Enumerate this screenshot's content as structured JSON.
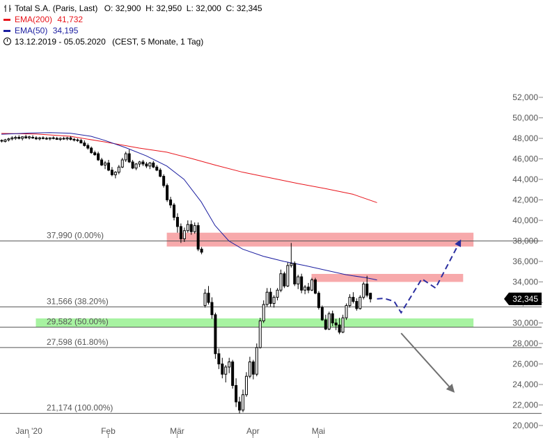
{
  "legend": {
    "symbol": "Total S.A. (Paris, Last)",
    "ohlc": "O: 32,900  H: 32,950  L: 32,000  C: 32,345",
    "ema200_label": "EMA(200)",
    "ema200_value": "41,732",
    "ema50_label": "EMA(50)",
    "ema50_value": "34,195",
    "range": "13.12.2019 - 05.05.2020",
    "period": "(CEST, 5 Monate, 1 Tag)"
  },
  "price_tag": "32,345",
  "colors": {
    "ema200": "#e8141b",
    "ema50": "#1b1ea0",
    "resistance_zone": "#f7a9ab",
    "support_zone": "#a7f3a1",
    "scenario_up": "#2a2ea0",
    "scenario_down": "#707070",
    "price_tag_bg": "#000000"
  },
  "chart_data": {
    "type": "candlestick",
    "y_axis": {
      "min": 20000,
      "max": 52000,
      "position": "right",
      "ticks": [
        20000,
        22000,
        24000,
        26000,
        28000,
        30000,
        32000,
        34000,
        36000,
        38000,
        40000,
        42000,
        44000,
        46000,
        48000,
        50000,
        52000
      ],
      "tick_labels": [
        "20,000",
        "22,000",
        "24,000",
        "26,000",
        "28,000",
        "30,000",
        "32,000",
        "34,000",
        "36,000",
        "38,000",
        "40,000",
        "42,000",
        "44,000",
        "46,000",
        "48,000",
        "50,000",
        "52,000"
      ]
    },
    "x_axis": {
      "months": [
        {
          "label": "Jan '20",
          "index": 8
        },
        {
          "label": "Feb",
          "index": 31
        },
        {
          "label": "Mär",
          "index": 51
        },
        {
          "label": "Apr",
          "index": 73
        },
        {
          "label": "Mai",
          "index": 92
        }
      ]
    },
    "fibonacci": [
      {
        "label": "37,990 (0.00%)",
        "value": 37990
      },
      {
        "label": "31,566 (38.20%)",
        "value": 31566
      },
      {
        "label": "29,582 (50.00%)",
        "value": 29582
      },
      {
        "label": "27,598 (61.80%)",
        "value": 27598
      },
      {
        "label": "21,174 (100.00%)",
        "value": 21174
      }
    ],
    "zones": [
      {
        "kind": "resistance",
        "from_index": 48,
        "to_index": 137,
        "low": 37450,
        "high": 38800
      },
      {
        "kind": "resistance",
        "from_index": 90,
        "to_index": 134,
        "low": 34000,
        "high": 34780
      },
      {
        "kind": "support",
        "from_index": 10,
        "to_index": 137,
        "low": 29580,
        "high": 30440
      }
    ],
    "candles": [
      [
        47800,
        47900,
        47600,
        47750
      ],
      [
        47700,
        47950,
        47600,
        47850
      ],
      [
        47850,
        48050,
        47700,
        47950
      ],
      [
        47950,
        48200,
        47800,
        48050
      ],
      [
        48000,
        48250,
        47850,
        48100
      ],
      [
        48100,
        48300,
        47900,
        48000
      ],
      [
        48000,
        48200,
        47800,
        48150
      ],
      [
        48150,
        48350,
        47950,
        48050
      ],
      [
        48050,
        48250,
        47900,
        48150
      ],
      [
        48100,
        48300,
        47950,
        48050
      ],
      [
        48050,
        48200,
        47850,
        47950
      ],
      [
        47950,
        48150,
        47800,
        48050
      ],
      [
        48050,
        48200,
        47900,
        48000
      ],
      [
        48000,
        48150,
        47850,
        47950
      ],
      [
        47950,
        48100,
        47800,
        48050
      ],
      [
        48050,
        48200,
        47900,
        48000
      ],
      [
        48000,
        48150,
        47850,
        47900
      ],
      [
        47900,
        48100,
        47750,
        48000
      ],
      [
        48000,
        48150,
        47850,
        47950
      ],
      [
        47950,
        48150,
        47800,
        48050
      ],
      [
        48050,
        48200,
        47800,
        47900
      ],
      [
        47900,
        48050,
        47700,
        47850
      ],
      [
        47850,
        48000,
        47650,
        47800
      ],
      [
        47800,
        47950,
        47500,
        47550
      ],
      [
        47550,
        47800,
        47200,
        47300
      ],
      [
        47300,
        47500,
        46900,
        47050
      ],
      [
        47050,
        47200,
        46500,
        46600
      ],
      [
        46600,
        46800,
        46300,
        46400
      ],
      [
        46500,
        46700,
        45800,
        45900
      ],
      [
        45900,
        46100,
        45300,
        45400
      ],
      [
        45400,
        45800,
        45000,
        45600
      ],
      [
        45600,
        45900,
        44800,
        44900
      ],
      [
        44900,
        45200,
        44300,
        44450
      ],
      [
        44450,
        44800,
        44100,
        44700
      ],
      [
        44700,
        45400,
        44500,
        45200
      ],
      [
        45200,
        46100,
        45100,
        45900
      ],
      [
        45900,
        46700,
        45700,
        46500
      ],
      [
        46500,
        46900,
        45600,
        45700
      ],
      [
        45700,
        45900,
        45000,
        45100
      ],
      [
        45100,
        45600,
        44900,
        45500
      ],
      [
        45500,
        45800,
        45200,
        45700
      ],
      [
        45700,
        45900,
        45300,
        45500
      ],
      [
        45500,
        45700,
        45100,
        45300
      ],
      [
        45300,
        45700,
        45000,
        45600
      ],
      [
        45600,
        45800,
        45100,
        45200
      ],
      [
        45200,
        45400,
        44800,
        44900
      ],
      [
        44900,
        45100,
        44200,
        44300
      ],
      [
        44300,
        44500,
        43200,
        43400
      ],
      [
        43400,
        43600,
        41800,
        42000
      ],
      [
        42000,
        42300,
        41200,
        41500
      ],
      [
        41500,
        41700,
        40000,
        40300
      ],
      [
        40300,
        40700,
        38800,
        39400
      ],
      [
        39400,
        39700,
        37800,
        38200
      ],
      [
        38200,
        39300,
        37900,
        39000
      ],
      [
        39000,
        40000,
        38800,
        39600
      ],
      [
        39600,
        40000,
        38600,
        38900
      ],
      [
        38900,
        39800,
        38700,
        39500
      ],
      [
        39500,
        39800,
        37000,
        37200
      ],
      [
        37200,
        37400,
        36700,
        36900
      ],
      [
        31700,
        33300,
        31500,
        32900
      ],
      [
        32900,
        33600,
        31800,
        32000
      ],
      [
        32000,
        32500,
        30400,
        30800
      ],
      [
        30800,
        31000,
        26500,
        27000
      ],
      [
        27000,
        27500,
        25500,
        26000
      ],
      [
        26000,
        26600,
        24600,
        25000
      ],
      [
        25000,
        25900,
        24200,
        25700
      ],
      [
        25700,
        26600,
        25100,
        26200
      ],
      [
        26200,
        26400,
        23600,
        23900
      ],
      [
        23900,
        24600,
        21800,
        22300
      ],
      [
        22300,
        22800,
        21174,
        21500
      ],
      [
        21500,
        23500,
        21300,
        23000
      ],
      [
        23000,
        25200,
        22800,
        24800
      ],
      [
        24800,
        26700,
        24600,
        26200
      ],
      [
        26200,
        26400,
        24500,
        25000
      ],
      [
        25000,
        28000,
        24800,
        27600
      ],
      [
        27600,
        30500,
        27500,
        30200
      ],
      [
        30200,
        32200,
        30000,
        31800
      ],
      [
        31800,
        33400,
        31600,
        33000
      ],
      [
        33000,
        33400,
        31600,
        31900
      ],
      [
        31900,
        32700,
        31500,
        32500
      ],
      [
        32500,
        33400,
        32200,
        33200
      ],
      [
        33200,
        35200,
        33000,
        34800
      ],
      [
        34800,
        35000,
        33400,
        33600
      ],
      [
        33600,
        35900,
        33500,
        35600
      ],
      [
        35600,
        37800,
        35400,
        35800
      ],
      [
        35800,
        36000,
        33600,
        33800
      ],
      [
        33800,
        34700,
        33300,
        34500
      ],
      [
        34500,
        34800,
        32900,
        33200
      ],
      [
        33200,
        33700,
        32800,
        33500
      ],
      [
        33500,
        33900,
        32900,
        33200
      ],
      [
        33200,
        34400,
        33100,
        34200
      ],
      [
        34200,
        34400,
        32800,
        32900
      ],
      [
        32900,
        33100,
        31300,
        31500
      ],
      [
        31500,
        31700,
        30200,
        30300
      ],
      [
        30300,
        30800,
        29300,
        29400
      ],
      [
        29400,
        31100,
        29300,
        30900
      ],
      [
        30900,
        31200,
        29700,
        30000
      ],
      [
        30000,
        30400,
        29300,
        29800
      ],
      [
        29800,
        30500,
        28900,
        29100
      ],
      [
        29100,
        30800,
        29000,
        30500
      ],
      [
        30500,
        31900,
        30300,
        31700
      ],
      [
        31700,
        32800,
        31500,
        32500
      ],
      [
        32500,
        33000,
        31900,
        32100
      ],
      [
        32100,
        32400,
        31200,
        31400
      ],
      [
        31400,
        32700,
        31300,
        32500
      ],
      [
        32500,
        34000,
        32300,
        33800
      ],
      [
        33800,
        34600,
        32500,
        32700
      ],
      [
        32900,
        32950,
        32000,
        32345
      ]
    ],
    "ema200": [
      [
        0,
        48480
      ],
      [
        10,
        48420
      ],
      [
        20,
        48200
      ],
      [
        30,
        47650
      ],
      [
        40,
        47050
      ],
      [
        48,
        46650
      ],
      [
        55,
        46050
      ],
      [
        62,
        45400
      ],
      [
        70,
        44700
      ],
      [
        78,
        44150
      ],
      [
        86,
        43600
      ],
      [
        94,
        43100
      ],
      [
        102,
        42550
      ],
      [
        109,
        41732
      ]
    ],
    "ema50": [
      [
        0,
        48400
      ],
      [
        8,
        48520
      ],
      [
        14,
        48560
      ],
      [
        20,
        48500
      ],
      [
        26,
        48200
      ],
      [
        30,
        47800
      ],
      [
        36,
        47100
      ],
      [
        42,
        46300
      ],
      [
        48,
        45300
      ],
      [
        53,
        44000
      ],
      [
        58,
        41800
      ],
      [
        62,
        39500
      ],
      [
        66,
        38000
      ],
      [
        70,
        37200
      ],
      [
        76,
        36500
      ],
      [
        82,
        36000
      ],
      [
        88,
        35600
      ],
      [
        94,
        35150
      ],
      [
        100,
        34700
      ],
      [
        106,
        34400
      ],
      [
        109,
        34195
      ]
    ],
    "scenario_up": [
      [
        109,
        32345
      ],
      [
        111,
        32400
      ],
      [
        114,
        32100
      ],
      [
        116,
        31000
      ],
      [
        122,
        34300
      ],
      [
        126,
        33400
      ],
      [
        133,
        37900
      ]
    ],
    "scenario_down": [
      [
        116,
        29000
      ],
      [
        131,
        23400
      ]
    ]
  }
}
